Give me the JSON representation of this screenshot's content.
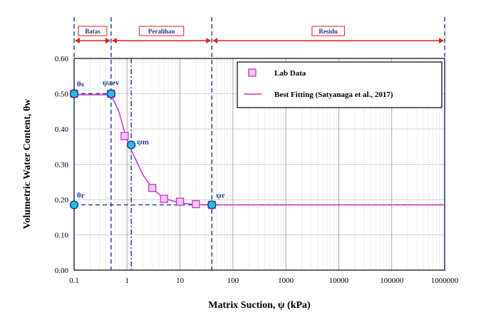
{
  "chart_data": {
    "type": "scatter",
    "xlabel": "Matrix Suction, ψ (kPa)",
    "ylabel": "Volumetric Water Content, θw",
    "xscale": "log",
    "xlim": [
      0.1,
      1000000
    ],
    "ylim": [
      0,
      0.6
    ],
    "x_ticks": [
      0.1,
      1,
      10,
      100,
      1000,
      10000,
      100000,
      1000000
    ],
    "x_tick_labels": [
      "0.1",
      "1",
      "10",
      "100",
      "1000",
      "10000",
      "100000",
      "1000000"
    ],
    "y_ticks": [
      0,
      0.1,
      0.2,
      0.3,
      0.4,
      0.5,
      0.6
    ],
    "y_tick_labels": [
      "0.00",
      "0.10",
      "0.20",
      "0.30",
      "0.40",
      "0.50",
      "0.60"
    ],
    "grid": true,
    "legend_position": "top-right",
    "zones": [
      {
        "label": "Batas",
        "from": 0.1,
        "to": 0.5
      },
      {
        "label": "Peralihan",
        "from": 0.5,
        "to": 40
      },
      {
        "label": "Residu",
        "from": 40,
        "to": 1000000
      }
    ],
    "series": [
      {
        "name": "Lab Data",
        "kind": "markers",
        "color": "#cc33cc",
        "marker": "square",
        "points": [
          [
            0.1,
            0.5
          ],
          [
            0.5,
            0.5
          ],
          [
            0.9,
            0.38
          ],
          [
            3,
            0.233
          ],
          [
            5,
            0.202
          ],
          [
            10,
            0.194
          ],
          [
            20,
            0.187
          ],
          [
            40,
            0.185
          ]
        ]
      },
      {
        "name": "Best Fitting (Satyanaga et al., 2017)",
        "kind": "line",
        "color": "#cc33cc",
        "points": [
          [
            0.1,
            0.497
          ],
          [
            0.5,
            0.497
          ],
          [
            0.7,
            0.45
          ],
          [
            0.9,
            0.39
          ],
          [
            1.2,
            0.34
          ],
          [
            2,
            0.27
          ],
          [
            3,
            0.232
          ],
          [
            5,
            0.203
          ],
          [
            10,
            0.19
          ],
          [
            20,
            0.186
          ],
          [
            40,
            0.185
          ],
          [
            1000000,
            0.185
          ]
        ]
      }
    ],
    "key_points": [
      {
        "label": "θs",
        "x": 0.1,
        "y": 0.5
      },
      {
        "label": "ψaev",
        "x": 0.5,
        "y": 0.5
      },
      {
        "label": "ψm",
        "x": 1.2,
        "y": 0.355
      },
      {
        "label": "θr",
        "x": 0.1,
        "y": 0.185
      },
      {
        "label": "ψr",
        "x": 40,
        "y": 0.185
      }
    ],
    "reference_lines": {
      "horizontal_y": 0.185,
      "vertical_x": [
        0.1,
        0.5,
        1.2,
        40,
        1000000
      ]
    },
    "colors": {
      "frame": "#000000",
      "grid": "#bfbfbf",
      "reference": "#1f3a8a",
      "zone_arrow": "#e02020",
      "zone_text": "#1f3a8a",
      "key_point_fill": "#22bde0",
      "key_point_stroke": "#1f3a8a",
      "series": "#cc33cc"
    }
  }
}
